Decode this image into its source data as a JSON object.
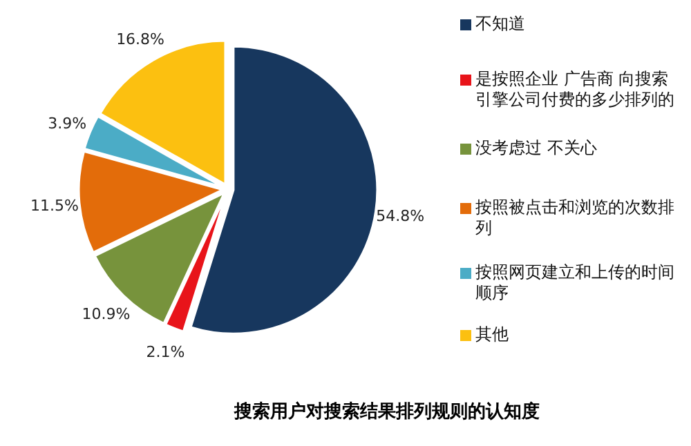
{
  "chart_data": {
    "type": "pie",
    "title": "搜索用户对搜索结果排列规则的认知度",
    "categories": [
      "不知道",
      "是按照企业 广告商 向搜索引擎公司付费的多少排列的",
      "没考虑过 不关心",
      "按照被点击和浏览的次数排列",
      "按照网页建立和上传的时间顺序",
      "其他"
    ],
    "values": [
      54.8,
      2.1,
      10.9,
      11.5,
      3.9,
      16.8
    ],
    "value_labels": [
      "54.8%",
      "2.1%",
      "10.9%",
      "11.5%",
      "3.9%",
      "16.8%"
    ],
    "colors": [
      "#17375e",
      "#e8141a",
      "#77933c",
      "#e36c0a",
      "#4bacc6",
      "#fcc010"
    ],
    "legend": "right"
  }
}
